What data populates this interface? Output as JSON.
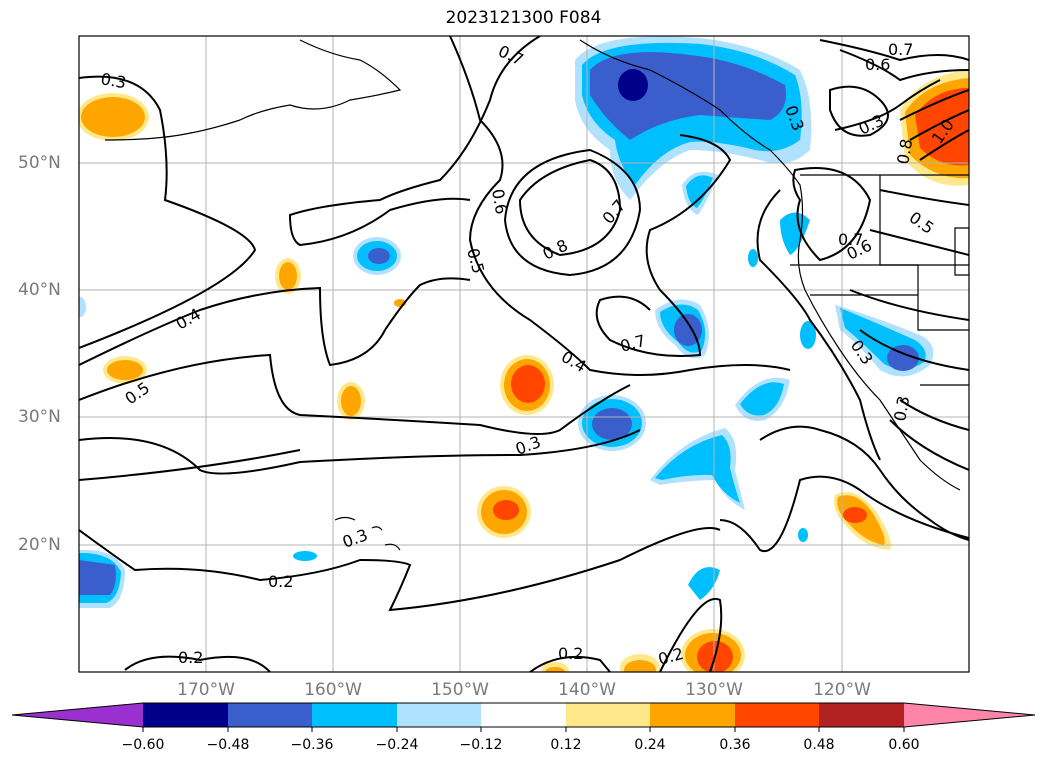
{
  "title": "2023121300 F084",
  "map": {
    "lon_labels": [
      "170°W",
      "160°W",
      "150°W",
      "140°W",
      "130°W",
      "120°W"
    ],
    "lat_labels": [
      "50°N",
      "40°N",
      "30°N",
      "20°N"
    ],
    "grid": true,
    "contour_labels": [
      "0.3",
      "0.7",
      "0.6",
      "0.7",
      "0.3",
      "1.0",
      "0.8",
      "0.6",
      "0.8",
      "0.7",
      "0.5",
      "0.7",
      "0.6",
      "0.5",
      "0.4",
      "0.5",
      "0.7",
      "0.4",
      "0.3",
      "0.3",
      "0.3",
      "0.3",
      "0.2",
      "0.2",
      "0.2",
      "0.2",
      "0.3"
    ]
  },
  "colorbar": {
    "ticks": [
      "−0.60",
      "−0.48",
      "−0.36",
      "−0.24",
      "−0.12",
      "0.12",
      "0.24",
      "0.36",
      "0.48",
      "0.60"
    ],
    "colors": [
      "#9b30d0",
      "#00008b",
      "#3a5fcd",
      "#00bfff",
      "#b0e2ff",
      "#ffffff",
      "#ffe88a",
      "#ffa500",
      "#ff4500",
      "#b22222",
      "#ff85a8"
    ]
  }
}
